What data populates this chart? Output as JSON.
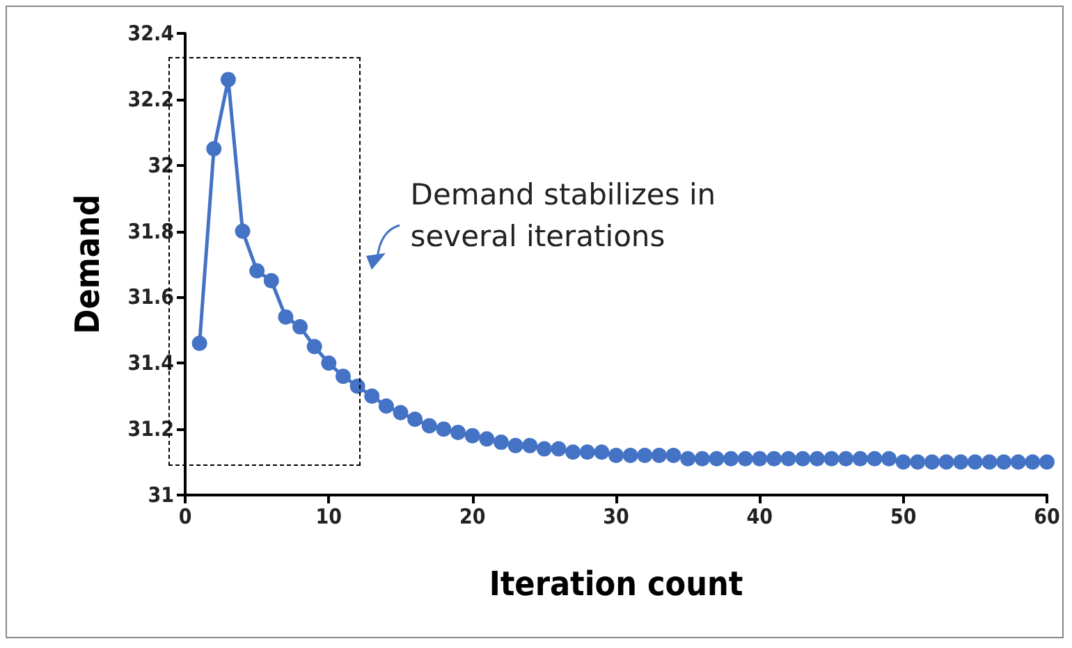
{
  "chart_data": {
    "type": "line",
    "xlabel": "Iteration count",
    "ylabel": "Demand",
    "x": [
      1,
      2,
      3,
      4,
      5,
      6,
      7,
      8,
      9,
      10,
      11,
      12,
      13,
      14,
      15,
      16,
      17,
      18,
      19,
      20,
      21,
      22,
      23,
      24,
      25,
      26,
      27,
      28,
      29,
      30,
      31,
      32,
      33,
      34,
      35,
      36,
      37,
      38,
      39,
      40,
      41,
      42,
      43,
      44,
      45,
      46,
      47,
      48,
      49,
      50,
      51,
      52,
      53,
      54,
      55,
      56,
      57,
      58,
      59,
      60
    ],
    "series": [
      {
        "color": "#4472c4",
        "values": [
          31.46,
          32.05,
          32.26,
          31.8,
          31.68,
          31.65,
          31.54,
          31.51,
          31.45,
          31.4,
          31.36,
          31.33,
          31.3,
          31.27,
          31.25,
          31.23,
          31.21,
          31.2,
          31.19,
          31.18,
          31.17,
          31.16,
          31.15,
          31.15,
          31.14,
          31.14,
          31.13,
          31.13,
          31.13,
          31.12,
          31.12,
          31.12,
          31.12,
          31.12,
          31.11,
          31.11,
          31.11,
          31.11,
          31.11,
          31.11,
          31.11,
          31.11,
          31.11,
          31.11,
          31.11,
          31.11,
          31.11,
          31.11,
          31.11,
          31.1,
          31.1,
          31.1,
          31.1,
          31.1,
          31.1,
          31.1,
          31.1,
          31.1,
          31.1,
          31.1
        ]
      }
    ],
    "xlim": [
      0,
      60
    ],
    "xticks": [
      0,
      10,
      20,
      30,
      40,
      50,
      60
    ],
    "ylim": [
      31,
      32.4
    ],
    "yticks": [
      31,
      31.2,
      31.4,
      31.6,
      31.8,
      32,
      32.2,
      32.4
    ],
    "annotations": [
      "Demand stabilizes in several iterations"
    ],
    "marker": "circle",
    "line_style": "solid",
    "grid": false
  }
}
